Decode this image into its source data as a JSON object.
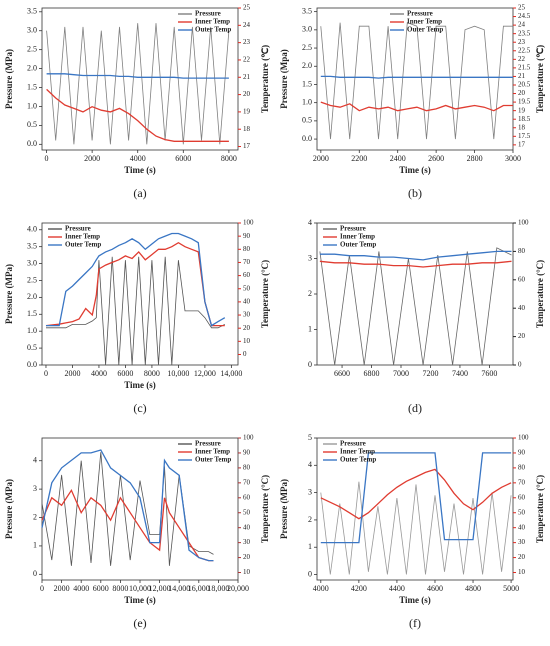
{
  "chart_data": [
    {
      "type": "line",
      "label": "(a)",
      "x_label": "Time (s)",
      "y_label": "Pressure (MPa)",
      "y2_label": "Temperature (℃)",
      "y2_color": "#e0281f",
      "legend_position": "upper right",
      "xlim": [
        -200,
        8400
      ],
      "xticks": [
        0,
        2000,
        4000,
        6000,
        8000
      ],
      "ylim": [
        -0.15,
        3.6
      ],
      "yticks": [
        {
          "value": 0,
          "label": "0.0"
        },
        0.5,
        {
          "value": 1,
          "label": "1.0"
        },
        1.5,
        {
          "value": 2,
          "label": "2.0"
        },
        2.5,
        {
          "value": 3,
          "label": "3.0"
        },
        3.5
      ],
      "y2lim": [
        16.8,
        25
      ],
      "y2ticks": [
        17,
        18,
        19,
        20,
        21,
        22,
        23,
        24,
        25
      ],
      "x": [
        0,
        400,
        800,
        1200,
        1600,
        2000,
        2400,
        2800,
        3200,
        3600,
        4000,
        4400,
        4800,
        5200,
        5600,
        6000,
        6400,
        6800,
        7200,
        7600,
        8000
      ],
      "series": [
        {
          "name": "Pressure",
          "color": "#808080",
          "values": [
            3.0,
            0.1,
            3.1,
            0.0,
            3.1,
            0.1,
            3.0,
            0.0,
            3.1,
            0.1,
            3.2,
            0.0,
            3.2,
            0.1,
            3.1,
            0.0,
            3.1,
            0.1,
            3.1,
            0.0,
            3.0
          ]
        },
        {
          "name": "Inner Temp",
          "color": "#e03c31",
          "axis": "y2",
          "values": [
            20.3,
            19.8,
            19.4,
            19.2,
            19.0,
            19.3,
            19.1,
            19.0,
            19.2,
            18.9,
            18.5,
            18.0,
            17.6,
            17.4,
            17.3,
            17.3,
            17.3,
            17.3,
            17.3,
            17.3,
            17.3
          ]
        },
        {
          "name": "Outer Temp",
          "color": "#3a76c4",
          "axis": "y2",
          "values": [
            21.2,
            21.2,
            21.2,
            21.15,
            21.1,
            21.1,
            21.1,
            21.1,
            21.05,
            21.05,
            21.0,
            21.0,
            21.0,
            21.0,
            21.0,
            20.95,
            20.95,
            20.95,
            20.95,
            20.95,
            20.95
          ]
        }
      ]
    },
    {
      "type": "line",
      "label": "(b)",
      "x_label": "Time (s)",
      "y_label": "Pressure (Mpa)",
      "y2_label": "Temperature (℃)",
      "y2_color": "#e0281f",
      "legend_position": "upper center",
      "xlim": [
        1980,
        3000
      ],
      "xticks": [
        2000,
        2200,
        2400,
        2600,
        2800,
        3000
      ],
      "ylim": [
        -0.3,
        3.6
      ],
      "yticks": [
        {
          "value": 0,
          "label": "0.0"
        },
        0.5,
        {
          "value": 1,
          "label": "1.0"
        },
        1.5,
        {
          "value": 2,
          "label": "2.0"
        },
        2.5,
        {
          "value": 3,
          "label": "3.0"
        },
        3.5
      ],
      "y2lim": [
        16.7,
        25
      ],
      "y2ticks": [
        17,
        17.5,
        18,
        18.5,
        19,
        19.5,
        20,
        20.5,
        21,
        21.5,
        22,
        22.5,
        23,
        23.5,
        24,
        24.5,
        25
      ],
      "x": [
        2000,
        2050,
        2100,
        2150,
        2200,
        2250,
        2300,
        2350,
        2400,
        2450,
        2500,
        2550,
        2600,
        2650,
        2700,
        2750,
        2800,
        2850,
        2900,
        2950,
        3000
      ],
      "series": [
        {
          "name": "Pressure",
          "color": "#808080",
          "values": [
            3.1,
            0.0,
            3.2,
            0.0,
            3.1,
            3.1,
            0.0,
            3.1,
            0.0,
            3.2,
            3.1,
            0.0,
            3.1,
            3.1,
            0.0,
            3.0,
            3.1,
            3.0,
            0.0,
            3.1,
            3.1
          ]
        },
        {
          "name": "Inner Temp",
          "color": "#e03c31",
          "axis": "y2",
          "values": [
            19.5,
            19.3,
            19.2,
            19.4,
            19.0,
            19.2,
            19.1,
            19.2,
            19.0,
            19.1,
            19.2,
            19.0,
            19.1,
            19.3,
            19.1,
            19.2,
            19.3,
            19.2,
            19.0,
            19.3,
            19.3
          ]
        },
        {
          "name": "Outer Temp",
          "color": "#3a76c4",
          "axis": "y2",
          "values": [
            21.0,
            21.0,
            20.95,
            20.95,
            20.95,
            20.95,
            20.9,
            20.95,
            20.95,
            20.95,
            20.95,
            20.95,
            20.95,
            20.95,
            20.95,
            20.95,
            20.95,
            20.95,
            20.95,
            20.95,
            20.95
          ]
        }
      ]
    },
    {
      "type": "line",
      "label": "(c)",
      "x_label": "Time (s)",
      "y_label": "Pressure (MPa)",
      "y2_label": "Temperature (°C)",
      "y2_color": "#e0281f",
      "legend_position": "upper left",
      "xlim": [
        -300,
        14500
      ],
      "xticks": [
        0,
        2000,
        4000,
        6000,
        8000,
        {
          "value": 10000,
          "label": "10,000"
        },
        {
          "value": 12000,
          "label": "12,000"
        },
        {
          "value": 14000,
          "label": "14,000"
        }
      ],
      "ylim": [
        0,
        4.2
      ],
      "yticks": [
        {
          "value": 0,
          "label": "0.0"
        },
        0.5,
        {
          "value": 1,
          "label": "1.0"
        },
        1.5,
        {
          "value": 2,
          "label": "2.0"
        },
        2.5,
        {
          "value": 3,
          "label": "3.0"
        },
        3.5,
        {
          "value": 4,
          "label": "4.0"
        }
      ],
      "y2lim": [
        -8,
        100
      ],
      "y2ticks": [
        0,
        10,
        20,
        30,
        40,
        50,
        60,
        70,
        80,
        90,
        100
      ],
      "x": [
        0,
        1000,
        1500,
        2000,
        2500,
        3000,
        3500,
        3800,
        4000,
        4500,
        5000,
        5500,
        6000,
        6500,
        7000,
        7500,
        8000,
        8500,
        9000,
        9500,
        10000,
        10500,
        11000,
        11500,
        12000,
        12500,
        13000,
        13500
      ],
      "series": [
        {
          "name": "Pressure",
          "color": "#555555",
          "values": [
            1.1,
            1.1,
            1.1,
            1.2,
            1.2,
            1.2,
            1.3,
            1.4,
            3.1,
            0.0,
            3.2,
            0.0,
            3.1,
            0.0,
            3.2,
            0.0,
            3.1,
            0.0,
            3.2,
            0.0,
            3.1,
            1.6,
            1.6,
            1.6,
            1.4,
            1.1,
            1.1,
            1.2
          ]
        },
        {
          "name": "Inner Temp",
          "color": "#e03c31",
          "axis": "y2",
          "values": [
            22,
            23,
            24,
            25,
            27,
            35,
            30,
            45,
            65,
            68,
            70,
            72,
            75,
            73,
            78,
            72,
            76,
            80,
            80,
            82,
            85,
            82,
            80,
            78,
            40,
            22,
            22,
            22
          ]
        },
        {
          "name": "Outer Temp",
          "color": "#3a76c4",
          "axis": "y2",
          "values": [
            22,
            22,
            48,
            52,
            57,
            62,
            67,
            72,
            75,
            78,
            80,
            83,
            85,
            88,
            85,
            80,
            84,
            88,
            90,
            92,
            92,
            90,
            88,
            85,
            40,
            22,
            25,
            28
          ]
        }
      ]
    },
    {
      "type": "line",
      "label": "(d)",
      "y2_label": "Temperature (°C)",
      "y2_color": "#222222",
      "legend_position": "upper left",
      "xlim": [
        6430,
        7760
      ],
      "xticks": [
        6600,
        6800,
        7000,
        7200,
        7400,
        7600
      ],
      "ylim": [
        0,
        4
      ],
      "yticks": [
        0,
        1,
        2,
        3,
        4
      ],
      "y2lim": [
        0,
        100
      ],
      "y2ticks": [
        0,
        20,
        40,
        60,
        80,
        100
      ],
      "x": [
        6450,
        6550,
        6650,
        6750,
        6850,
        6950,
        7050,
        7150,
        7250,
        7350,
        7450,
        7550,
        7650,
        7750
      ],
      "series": [
        {
          "name": "Pressure",
          "color": "#666666",
          "values": [
            3.2,
            0.0,
            3.1,
            0.0,
            3.2,
            0.0,
            3.0,
            0.0,
            3.1,
            0.0,
            3.2,
            0.0,
            3.3,
            3.1
          ]
        },
        {
          "name": "Inner Temp",
          "color": "#e03c31",
          "axis": "y2",
          "values": [
            73,
            72,
            72,
            71,
            71,
            70,
            70,
            69,
            70,
            71,
            71,
            72,
            72,
            73
          ]
        },
        {
          "name": "Outer Temp",
          "color": "#3a76c4",
          "axis": "y2",
          "values": [
            78,
            78,
            77,
            77,
            76,
            76,
            75,
            74,
            76,
            77,
            78,
            79,
            80,
            80
          ]
        }
      ]
    },
    {
      "type": "line",
      "label": "(e)",
      "x_label": "Time (s)",
      "y_label": "Pressure (MPa)",
      "y2_label": "Temperature (°C)",
      "y2_color": "#b03030",
      "legend_position": "upper right",
      "xlim": [
        0,
        20000
      ],
      "xticks": [
        0,
        2000,
        4000,
        6000,
        8000,
        {
          "value": 10000,
          "label": "10,000"
        },
        {
          "value": 12000,
          "label": "12,000"
        },
        {
          "value": 14000,
          "label": "14,000"
        },
        {
          "value": 16000,
          "label": "16,000"
        },
        {
          "value": 18000,
          "label": "18,000"
        },
        {
          "value": 20000,
          "label": "20,000"
        }
      ],
      "ylim": [
        -0.2,
        4.8
      ],
      "yticks": [
        0,
        1,
        2,
        3,
        4
      ],
      "y2lim": [
        5,
        100
      ],
      "y2ticks": [
        10,
        20,
        30,
        40,
        50,
        60,
        70,
        80,
        90,
        100
      ],
      "x": [
        0,
        1000,
        2000,
        3000,
        4000,
        5000,
        6000,
        7000,
        8000,
        9000,
        10000,
        11000,
        12000,
        12500,
        13000,
        14000,
        15000,
        16000,
        17000,
        17500
      ],
      "series": [
        {
          "name": "Pressure",
          "color": "#555555",
          "values": [
            2.5,
            0.5,
            3.5,
            0.3,
            4.0,
            0.4,
            4.3,
            0.3,
            3.5,
            0.5,
            3.3,
            1.4,
            1.4,
            3.8,
            0.3,
            3.5,
            1.0,
            0.8,
            0.8,
            0.7
          ]
        },
        {
          "name": "Inner Temp",
          "color": "#e03c31",
          "axis": "y2",
          "values": [
            45,
            60,
            55,
            65,
            50,
            60,
            55,
            45,
            60,
            50,
            40,
            30,
            25,
            60,
            50,
            40,
            30,
            20,
            18,
            18
          ]
        },
        {
          "name": "Outer Temp",
          "color": "#3a76c4",
          "axis": "y2",
          "values": [
            40,
            70,
            80,
            85,
            90,
            90,
            92,
            80,
            75,
            70,
            60,
            30,
            30,
            85,
            80,
            75,
            25,
            20,
            18,
            18
          ]
        }
      ]
    },
    {
      "type": "line",
      "label": "(f)",
      "x_label": "Time (s)",
      "y_label": "Pressure (MPa)",
      "y2_label": "Temperature (°C)",
      "y2_color": "#e0281f",
      "legend_position": "upper left",
      "xlim": [
        3980,
        5010
      ],
      "xticks": [
        4000,
        4200,
        4400,
        4600,
        4800,
        5000
      ],
      "ylim": [
        -0.2,
        5
      ],
      "yticks": [
        0,
        1,
        2,
        3,
        4,
        5
      ],
      "y2lim": [
        5,
        100
      ],
      "y2ticks": [
        10,
        20,
        30,
        40,
        50,
        60,
        70,
        80,
        90,
        100
      ],
      "x": [
        4000,
        4050,
        4100,
        4150,
        4200,
        4250,
        4300,
        4350,
        4400,
        4450,
        4500,
        4550,
        4600,
        4650,
        4700,
        4750,
        4800,
        4850,
        4900,
        4950,
        5000
      ],
      "series": [
        {
          "name": "Pressure",
          "color": "#999999",
          "values": [
            3.0,
            0.0,
            2.6,
            0.0,
            3.4,
            0.1,
            2.5,
            0.0,
            2.8,
            0.0,
            3.3,
            0.0,
            2.9,
            0.1,
            2.6,
            0.0,
            2.8,
            0.0,
            3.0,
            0.1,
            2.9
          ]
        },
        {
          "name": "Inner Temp",
          "color": "#e03c31",
          "axis": "y2",
          "values": [
            60,
            57,
            54,
            50,
            46,
            50,
            56,
            62,
            67,
            71,
            74,
            77,
            79,
            72,
            63,
            56,
            52,
            57,
            63,
            67,
            70
          ]
        },
        {
          "name": "Outer Temp",
          "color": "#3a76c4",
          "axis": "y2",
          "values": [
            30,
            30,
            30,
            30,
            30,
            90,
            90,
            90,
            90,
            90,
            90,
            90,
            90,
            32,
            32,
            32,
            32,
            90,
            90,
            90,
            90
          ]
        }
      ]
    }
  ]
}
